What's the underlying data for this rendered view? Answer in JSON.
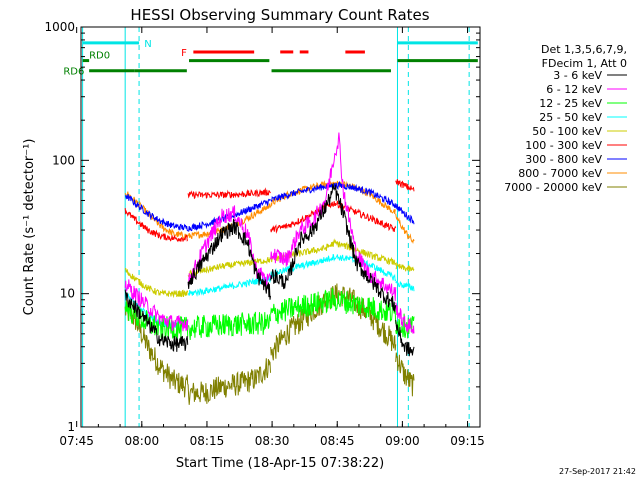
{
  "chart_data": {
    "type": "line",
    "title": "HESSI Observing Summary Count Rates",
    "xlabel": "Start Time (18-Apr-15 07:38:22)",
    "ylabel": "Count Rate (s⁻¹ detector⁻¹)",
    "yscale": "log",
    "ylim": [
      1,
      1000
    ],
    "xlim_minutes": [
      7.63,
      99.5
    ],
    "x_unit": "minutes after 07:38:22",
    "x_ticks": [
      {
        "label": "07:45",
        "min": 6.63
      },
      {
        "label": "08:00",
        "min": 21.63
      },
      {
        "label": "08:15",
        "min": 36.63
      },
      {
        "label": "08:30",
        "min": 51.63
      },
      {
        "label": "08:45",
        "min": 66.63
      },
      {
        "label": "09:00",
        "min": 81.63
      },
      {
        "label": "09:15",
        "min": 96.63
      }
    ],
    "y_ticks": [
      {
        "label": "1",
        "v": 1
      },
      {
        "label": "10",
        "v": 10
      },
      {
        "label": "100",
        "v": 100
      },
      {
        "label": "1000",
        "v": 1000
      }
    ],
    "legend_header": [
      "Det 1,3,5,6,7,9,",
      "FDecim 1, Att 0"
    ],
    "legend_position": "right",
    "flags": [
      {
        "label": "N",
        "color": "#00e5e5",
        "v": 760,
        "segments": [
          [
            8.0,
            21.0
          ],
          [
            80.5,
            99.0
          ]
        ]
      },
      {
        "label": "F",
        "color": "#ff0000",
        "v": 650,
        "segments": [
          [
            33.5,
            47.5
          ],
          [
            53.5,
            56.5
          ],
          [
            58.0,
            60.0
          ],
          [
            68.5,
            73.0
          ]
        ]
      },
      {
        "label": "RD0",
        "color": "#008000",
        "v": 560,
        "segments": [
          [
            8.0,
            9.5
          ],
          [
            32.5,
            51.0
          ],
          [
            80.5,
            99.0
          ]
        ]
      },
      {
        "label": "RD6",
        "color": "#008000",
        "v": 470,
        "segments": [
          [
            9.5,
            20.0
          ],
          [
            20.0,
            32.0
          ],
          [
            51.5,
            79.0
          ]
        ]
      }
    ],
    "vlines": [
      {
        "min": 8.0,
        "color": "#00e5e5",
        "style": "solid"
      },
      {
        "min": 17.8,
        "color": "#00e5e5",
        "style": "solid"
      },
      {
        "min": 21.0,
        "color": "#00e5e5",
        "style": "dashed"
      },
      {
        "min": 80.5,
        "color": "#00e5e5",
        "style": "solid"
      },
      {
        "min": 83.0,
        "color": "#00e5e5",
        "style": "dashed"
      },
      {
        "min": 97.0,
        "color": "#00e5e5",
        "style": "dashed"
      }
    ],
    "segments": [
      [
        17.8,
        32.3
      ],
      [
        32.3,
        51.3
      ],
      [
        51.3,
        80.1
      ],
      [
        80.1,
        84.3
      ]
    ],
    "series": [
      {
        "name": "3 - 6 keV",
        "color": "#000000",
        "keypoints": [
          [
            [
              17.8,
              9.5
            ],
            [
              20,
              8
            ],
            [
              23,
              6
            ],
            [
              26,
              4.5
            ],
            [
              29,
              4.2
            ],
            [
              32.3,
              4.2
            ]
          ],
          [
            [
              32.3,
              12
            ],
            [
              36,
              18
            ],
            [
              40,
              28
            ],
            [
              43,
              32
            ],
            [
              46,
              24
            ],
            [
              48,
              14
            ],
            [
              51.3,
              10
            ]
          ],
          [
            [
              51.3,
              14
            ],
            [
              55,
              12
            ],
            [
              58,
              25
            ],
            [
              61,
              30
            ],
            [
              64,
              45
            ],
            [
              66,
              62
            ],
            [
              68,
              40
            ],
            [
              71,
              17
            ],
            [
              74,
              13
            ],
            [
              77,
              10
            ],
            [
              80.1,
              8
            ]
          ],
          [
            [
              80.1,
              6
            ],
            [
              82,
              4
            ],
            [
              84.3,
              3.6
            ]
          ]
        ]
      },
      {
        "name": "6 - 12 keV",
        "color": "#ff00ff",
        "keypoints": [
          [
            [
              17.8,
              12
            ],
            [
              20,
              10
            ],
            [
              23,
              8
            ],
            [
              26,
              6.5
            ],
            [
              29,
              6
            ],
            [
              32.3,
              6
            ]
          ],
          [
            [
              32.3,
              12
            ],
            [
              36,
              22
            ],
            [
              40,
              38
            ],
            [
              43,
              40
            ],
            [
              46,
              28
            ],
            [
              48,
              15
            ],
            [
              51.3,
              12
            ]
          ],
          [
            [
              51.3,
              20
            ],
            [
              55,
              18
            ],
            [
              58,
              30
            ],
            [
              61,
              35
            ],
            [
              64,
              52
            ],
            [
              66,
              110
            ],
            [
              67,
              150
            ],
            [
              68,
              60
            ],
            [
              71,
              20
            ],
            [
              74,
              14
            ],
            [
              77,
              12
            ],
            [
              80.1,
              10
            ]
          ],
          [
            [
              80.1,
              8
            ],
            [
              82,
              6
            ],
            [
              84.3,
              5.5
            ]
          ]
        ]
      },
      {
        "name": "12 - 25 keV",
        "color": "#00ff00",
        "keypoints": [
          [
            [
              17.8,
              8
            ],
            [
              20,
              7
            ],
            [
              23,
              6
            ],
            [
              26,
              5.5
            ],
            [
              29,
              5.5
            ],
            [
              32.3,
              5.5
            ]
          ],
          [
            [
              32.3,
              5.5
            ],
            [
              40,
              5.8
            ],
            [
              51.3,
              6
            ]
          ],
          [
            [
              51.3,
              7
            ],
            [
              58,
              8
            ],
            [
              66,
              9
            ],
            [
              74,
              8
            ],
            [
              80.1,
              7
            ]
          ],
          [
            [
              80.1,
              6
            ],
            [
              84.3,
              5.5
            ]
          ]
        ]
      },
      {
        "name": "25 - 50 keV",
        "color": "#00ffff",
        "keypoints": [
          [
            [
              17.8,
              10
            ],
            [
              20,
              8.5
            ],
            [
              23,
              7
            ],
            [
              26,
              6
            ],
            [
              29,
              5.8
            ],
            [
              32.3,
              6
            ]
          ],
          [
            [
              32.3,
              10
            ],
            [
              40,
              11
            ],
            [
              46,
              12
            ],
            [
              51.3,
              13
            ]
          ],
          [
            [
              51.3,
              14
            ],
            [
              58,
              16
            ],
            [
              64,
              18
            ],
            [
              66,
              19
            ],
            [
              70,
              18
            ],
            [
              75,
              16
            ],
            [
              80.1,
              13
            ]
          ],
          [
            [
              80.1,
              12
            ],
            [
              84.3,
              11
            ]
          ]
        ]
      },
      {
        "name": "50 - 100 keV",
        "color": "#cccc00",
        "keypoints": [
          [
            [
              17.8,
              15
            ],
            [
              20,
              13
            ],
            [
              23,
              11
            ],
            [
              26,
              10
            ],
            [
              29,
              10
            ],
            [
              32.3,
              10
            ]
          ],
          [
            [
              32.3,
              14
            ],
            [
              40,
              16
            ],
            [
              46,
              17
            ],
            [
              51.3,
              18
            ]
          ],
          [
            [
              51.3,
              18
            ],
            [
              58,
              20
            ],
            [
              64,
              22
            ],
            [
              66,
              24
            ],
            [
              70,
              22
            ],
            [
              75,
              19
            ],
            [
              80.1,
              17
            ]
          ],
          [
            [
              80.1,
              16
            ],
            [
              84.3,
              15
            ]
          ]
        ]
      },
      {
        "name": "100 - 300 keV",
        "color": "#ff0000",
        "keypoints": [
          [
            [
              17.8,
              42
            ],
            [
              20,
              36
            ],
            [
              23,
              30
            ],
            [
              26,
              27
            ],
            [
              29,
              26
            ],
            [
              32.3,
              26
            ]
          ],
          [
            [
              32.3,
              55
            ],
            [
              40,
              55
            ],
            [
              46,
              56
            ],
            [
              51.3,
              58
            ]
          ],
          [
            [
              51.3,
              30
            ],
            [
              55,
              32
            ],
            [
              60,
              38
            ],
            [
              64,
              45
            ],
            [
              66,
              48
            ],
            [
              70,
              42
            ],
            [
              75,
              36
            ],
            [
              80.1,
              30
            ]
          ],
          [
            [
              80.1,
              70
            ],
            [
              82,
              65
            ],
            [
              84.3,
              60
            ]
          ]
        ]
      },
      {
        "name": "300 - 800 keV",
        "color": "#0000ff",
        "keypoints": [
          [
            [
              17.8,
              55
            ],
            [
              20,
              48
            ],
            [
              23,
              40
            ],
            [
              26,
              35
            ],
            [
              29,
              32
            ],
            [
              32.3,
              31
            ]
          ],
          [
            [
              32.3,
              31
            ],
            [
              36,
              33
            ],
            [
              40,
              36
            ],
            [
              44,
              40
            ],
            [
              48,
              45
            ],
            [
              51.3,
              50
            ]
          ],
          [
            [
              51.3,
              50
            ],
            [
              55,
              55
            ],
            [
              60,
              60
            ],
            [
              64,
              64
            ],
            [
              67,
              65
            ],
            [
              70,
              63
            ],
            [
              74,
              58
            ],
            [
              78,
              50
            ],
            [
              80.1,
              46
            ]
          ],
          [
            [
              80.1,
              46
            ],
            [
              82,
              40
            ],
            [
              84.3,
              35
            ]
          ]
        ]
      },
      {
        "name": "800 - 7000 keV",
        "color": "#ff8c00",
        "keypoints": [
          [
            [
              17.8,
              58
            ],
            [
              20,
              50
            ],
            [
              23,
              40
            ],
            [
              26,
              32
            ],
            [
              29,
              28
            ],
            [
              32.3,
              27
            ]
          ],
          [
            [
              32.3,
              27
            ],
            [
              36,
              28
            ],
            [
              40,
              30
            ],
            [
              44,
              34
            ],
            [
              48,
              40
            ],
            [
              51.3,
              46
            ]
          ],
          [
            [
              51.3,
              47
            ],
            [
              55,
              55
            ],
            [
              60,
              62
            ],
            [
              64,
              66
            ],
            [
              67,
              67
            ],
            [
              70,
              64
            ],
            [
              74,
              56
            ],
            [
              78,
              45
            ],
            [
              80.1,
              40
            ]
          ],
          [
            [
              80.1,
              38
            ],
            [
              82,
              30
            ],
            [
              84.3,
              24
            ]
          ]
        ]
      },
      {
        "name": "7000 - 20000 keV",
        "color": "#808000",
        "keypoints": [
          [
            [
              17.8,
              7.5
            ],
            [
              20,
              6.5
            ],
            [
              23,
              4
            ],
            [
              26,
              2.8
            ],
            [
              29,
              2.2
            ],
            [
              32.3,
              2
            ]
          ],
          [
            [
              32.3,
              1.8
            ],
            [
              36,
              1.8
            ],
            [
              40,
              2
            ],
            [
              44,
              2.1
            ],
            [
              48,
              2.3
            ],
            [
              51.3,
              3
            ]
          ],
          [
            [
              51.3,
              3.5
            ],
            [
              55,
              5
            ],
            [
              60,
              7
            ],
            [
              64,
              9
            ],
            [
              67,
              10
            ],
            [
              70,
              9
            ],
            [
              74,
              7
            ],
            [
              78,
              5
            ],
            [
              80.1,
              4
            ]
          ],
          [
            [
              80.1,
              3.5
            ],
            [
              82,
              2.5
            ],
            [
              84.3,
              2
            ]
          ]
        ]
      }
    ]
  },
  "footer_timestamp": "27-Sep-2017 21:42"
}
